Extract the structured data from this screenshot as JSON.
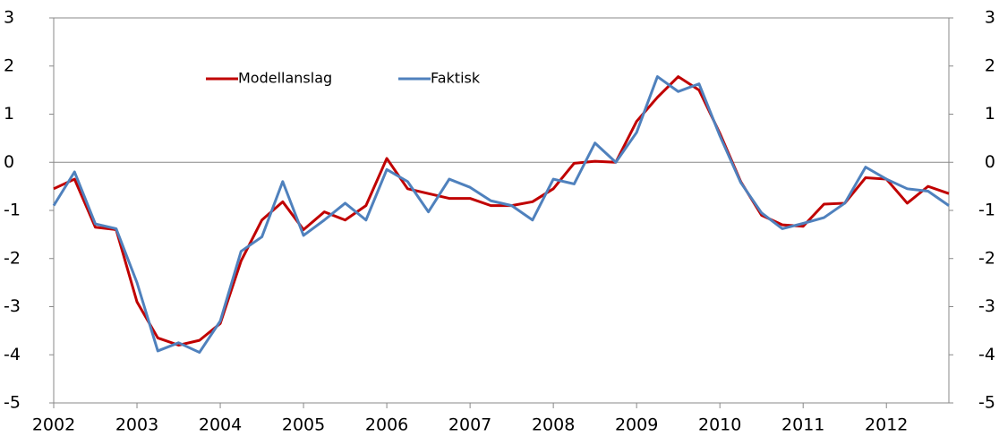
{
  "chart_data": {
    "type": "line",
    "x": [
      2002,
      2002.25,
      2002.5,
      2002.75,
      2003,
      2003.25,
      2003.5,
      2003.75,
      2004,
      2004.25,
      2004.5,
      2004.75,
      2005,
      2005.25,
      2005.5,
      2005.75,
      2006,
      2006.25,
      2006.5,
      2006.75,
      2007,
      2007.25,
      2007.5,
      2007.75,
      2008,
      2008.25,
      2008.5,
      2008.75,
      2009,
      2009.25,
      2009.5,
      2009.75,
      2010,
      2010.25,
      2010.5,
      2010.75,
      2011,
      2011.25,
      2011.5,
      2011.75,
      2012,
      2012.25,
      2012.5,
      2012.75
    ],
    "series": [
      {
        "name": "Modellanslag",
        "color": "#c00000",
        "values": [
          -0.55,
          -0.35,
          -1.35,
          -1.4,
          -2.9,
          -3.65,
          -3.8,
          -3.7,
          -3.35,
          -2.05,
          -1.2,
          -0.82,
          -1.4,
          -1.03,
          -1.2,
          -0.9,
          0.08,
          -0.55,
          -0.65,
          -0.75,
          -0.75,
          -0.9,
          -0.9,
          -0.82,
          -0.55,
          -0.02,
          0.02,
          0.0,
          0.85,
          1.35,
          1.78,
          1.5,
          0.6,
          -0.4,
          -1.1,
          -1.3,
          -1.33,
          -0.87,
          -0.85,
          -0.32,
          -0.35,
          -0.85,
          -0.5,
          -0.65
        ]
      },
      {
        "name": "Faktisk",
        "color": "#4f81bd",
        "values": [
          -0.9,
          -0.2,
          -1.28,
          -1.38,
          -2.5,
          -3.92,
          -3.75,
          -3.95,
          -3.3,
          -1.85,
          -1.55,
          -0.4,
          -1.52,
          -1.2,
          -0.85,
          -1.2,
          -0.15,
          -0.4,
          -1.03,
          -0.35,
          -0.52,
          -0.8,
          -0.9,
          -1.2,
          -0.35,
          -0.45,
          0.4,
          0.0,
          0.62,
          1.78,
          1.47,
          1.63,
          0.55,
          -0.42,
          -1.05,
          -1.38,
          -1.27,
          -1.15,
          -0.85,
          -0.1,
          -0.35,
          -0.55,
          -0.6,
          -0.9
        ]
      }
    ],
    "xlim": [
      2002,
      2012.75
    ],
    "xticks": [
      2002,
      2003,
      2004,
      2005,
      2006,
      2007,
      2008,
      2009,
      2010,
      2011,
      2012
    ],
    "ylim": [
      -5,
      3
    ],
    "yticks": [
      -5,
      -4,
      -3,
      -2,
      -1,
      0,
      1,
      2,
      3
    ],
    "y2lim": [
      -5,
      3
    ],
    "y2ticks": [
      -5,
      -4,
      -3,
      -2,
      -1,
      0,
      1,
      2,
      3
    ],
    "legend": "top-left"
  }
}
